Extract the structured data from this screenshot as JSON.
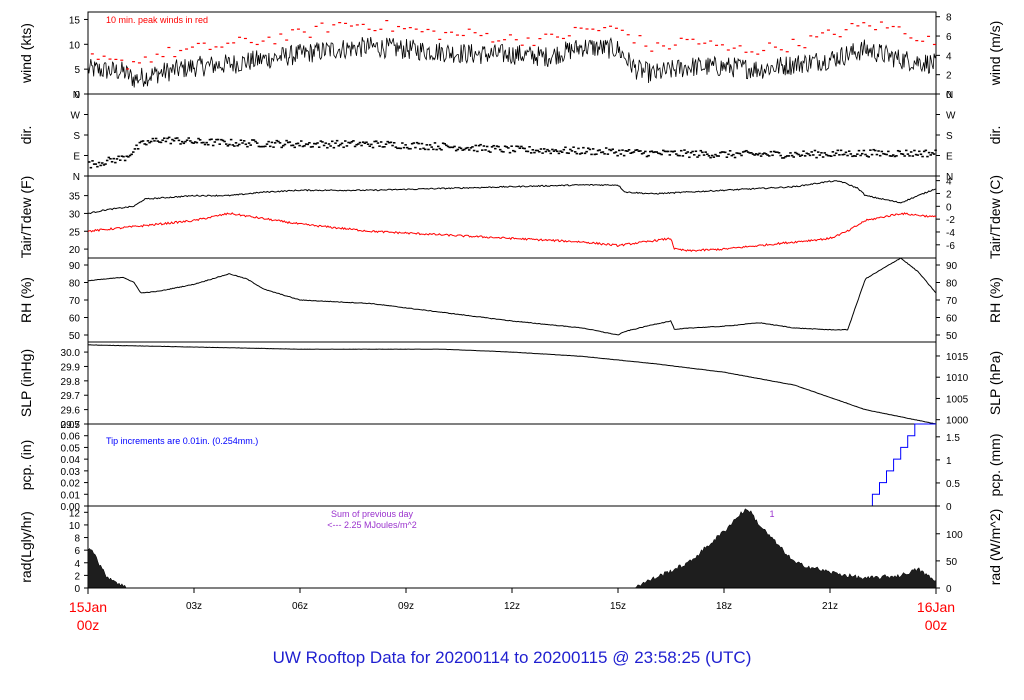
{
  "footer_title": "UW Rooftop Data for 20200114  to  20200115 @ 23:58:25  (UTC)",
  "colors": {
    "frame": "#000000",
    "red": "#ff0000",
    "blue": "#0000ff",
    "purple": "#9a32cd",
    "title": "#1f1fd0",
    "fill": "#1e1e1e"
  },
  "chart_data": [
    {
      "id": "wind",
      "type": "line",
      "ylabel_left": "wind (kts)",
      "ylabel_right": "wind (m/s)",
      "ylim": [
        0,
        16.5
      ],
      "yticks_left": [
        0,
        5,
        10,
        15
      ],
      "yticks_right": [
        0,
        2,
        4,
        6,
        8
      ],
      "right_scale": 0.5144,
      "annotation": "10 min. peak winds in red",
      "series": [
        {
          "style": "black line (average wind speed)",
          "x_hours": [
            0,
            1,
            1.3,
            2,
            3,
            4,
            5,
            6,
            7,
            8,
            9,
            10,
            11,
            12,
            13,
            14,
            15,
            15.5,
            16,
            17,
            18,
            19,
            20,
            21,
            22,
            23,
            24
          ],
          "values": [
            5,
            4.5,
            3,
            4.2,
            5.5,
            6,
            7,
            8,
            9,
            9.5,
            9,
            8.5,
            8,
            8,
            7.5,
            9.5,
            9,
            5,
            4,
            5.5,
            5.5,
            5,
            6,
            7,
            9,
            7,
            6
          ]
        },
        {
          "style": "red dashes (10-min peak)",
          "x_hours": [
            0,
            1,
            2,
            3,
            4,
            5,
            6,
            7,
            8,
            9,
            10,
            11,
            12,
            13,
            14,
            15,
            16,
            17,
            18,
            19,
            20,
            21,
            22,
            23,
            24
          ],
          "values": [
            7,
            6,
            8,
            9,
            10,
            11,
            12,
            14,
            14,
            13,
            12,
            12,
            11,
            11,
            13,
            13,
            9,
            11,
            9,
            9,
            10,
            12,
            14,
            13,
            10
          ]
        }
      ]
    },
    {
      "id": "dir",
      "type": "scatter",
      "ylabel_left": "dir.",
      "ylabel_right": "dir.",
      "yticks_left": [
        "N",
        "E",
        "S",
        "W",
        "N"
      ],
      "yticks_right": [
        "N",
        "E",
        "S",
        "W",
        "N"
      ],
      "ylim": [
        0,
        360
      ],
      "series": [
        {
          "style": "black dashes",
          "x_hours": [
            0,
            1,
            1.5,
            2,
            3,
            4,
            6,
            8,
            10,
            12,
            14,
            16,
            18,
            20,
            22,
            24
          ],
          "values": [
            50,
            80,
            140,
            160,
            150,
            145,
            140,
            140,
            130,
            115,
            110,
            100,
            95,
            95,
            100,
            100
          ]
        }
      ]
    },
    {
      "id": "temp",
      "type": "line",
      "ylabel_left": "Tair/Tdew (F)",
      "ylabel_right": "Tair/Tdew (C)",
      "ylim": [
        17.5,
        40.5
      ],
      "yticks_left": [
        20,
        25,
        30,
        35
      ],
      "yticks_right": [
        -6,
        -4,
        -2,
        0,
        2,
        4
      ],
      "series": [
        {
          "style": "black (Tair)",
          "x_hours": [
            0,
            0.5,
            1.3,
            1.6,
            3,
            4,
            5,
            6,
            8,
            10,
            12,
            14,
            15,
            15.2,
            16,
            17,
            18,
            19,
            20,
            21,
            21.3,
            21.8,
            22,
            23,
            24
          ],
          "values": [
            30,
            31,
            32,
            34,
            35,
            35,
            36,
            36.5,
            36.5,
            37,
            37.5,
            38,
            38,
            36,
            35.5,
            36,
            36.5,
            37,
            37.5,
            39,
            39,
            37,
            35,
            33,
            37
          ]
        },
        {
          "style": "red (Tdew)",
          "x_hours": [
            0,
            1,
            2,
            3,
            4,
            6,
            8,
            10,
            12,
            14,
            15,
            16.5,
            16.6,
            17,
            18,
            19,
            20,
            21,
            21.5,
            22,
            23,
            24
          ],
          "values": [
            25,
            26,
            27,
            28,
            30,
            27,
            25,
            24,
            23,
            22,
            21,
            23,
            20,
            19.5,
            20,
            21,
            22,
            23,
            25,
            28,
            30,
            29
          ]
        }
      ]
    },
    {
      "id": "rh",
      "type": "line",
      "ylabel_left": "RH (%)",
      "ylabel_right": "RH (%)",
      "ylim": [
        46,
        94
      ],
      "yticks_left": [
        50,
        60,
        70,
        80,
        90
      ],
      "yticks_right": [
        50,
        60,
        70,
        80,
        90
      ],
      "series": [
        {
          "style": "black",
          "x_hours": [
            0,
            0.5,
            1,
            1.3,
            1.5,
            2,
            3,
            4,
            4.5,
            5,
            6,
            8,
            10,
            12,
            14,
            15,
            15.2,
            16,
            16.5,
            16.6,
            17,
            18,
            19,
            20,
            21,
            21.5,
            22,
            23,
            23.5,
            24
          ],
          "values": [
            81,
            82,
            83,
            80,
            74,
            75,
            79,
            85,
            82,
            76,
            70,
            68,
            63,
            58,
            54,
            50,
            52,
            56,
            58,
            53,
            54,
            55,
            57,
            54,
            53,
            53,
            82,
            94,
            86,
            74
          ]
        }
      ]
    },
    {
      "id": "slp",
      "type": "line",
      "ylabel_left": "SLP (inHg)",
      "ylabel_right": "SLP (hPa)",
      "ylim": [
        29.5,
        30.07
      ],
      "yticks_left": [
        29.5,
        29.6,
        29.7,
        29.8,
        29.9,
        30.0
      ],
      "yticks_right": [
        1000,
        1005,
        1010,
        1015
      ],
      "series": [
        {
          "style": "black",
          "x_hours": [
            0,
            2,
            4,
            6,
            8,
            10,
            12,
            14,
            16,
            18,
            20,
            22,
            24
          ],
          "values": [
            30.05,
            30.04,
            30.03,
            30.02,
            30.02,
            30.02,
            30.0,
            29.97,
            29.92,
            29.86,
            29.77,
            29.6,
            29.5
          ]
        }
      ]
    },
    {
      "id": "pcp",
      "type": "line",
      "ylabel_left": "pcp. (in)",
      "ylabel_right": "pcp. (mm)",
      "ylim": [
        0,
        0.07
      ],
      "yticks_left": [
        0.0,
        0.01,
        0.02,
        0.03,
        0.04,
        0.05,
        0.06,
        0.07
      ],
      "yticks_right": [
        0,
        0.5,
        1,
        1.5
      ],
      "annotation": "Tip increments are 0.01in. (0.254mm.)",
      "series": [
        {
          "style": "blue step",
          "x_hours": [
            0,
            22.2,
            22.2,
            22.4,
            22.6,
            22.8,
            23.0,
            23.2,
            23.4,
            24
          ],
          "values": [
            0,
            0,
            0.01,
            0.02,
            0.03,
            0.04,
            0.05,
            0.06,
            0.07,
            0.07
          ]
        }
      ]
    },
    {
      "id": "rad",
      "type": "area",
      "ylabel_left": "rad(Lgly/hr)",
      "ylabel_right": "rad (W/m^2)",
      "ylim": [
        0,
        13
      ],
      "yticks_left": [
        0,
        2,
        4,
        6,
        8,
        10,
        12
      ],
      "yticks_right": [
        0,
        50,
        100
      ],
      "annotation_lines": [
        "Sum of previous day",
        "<--- 2.25 MJoules/m^2"
      ],
      "marker": "1",
      "series": [
        {
          "style": "dark filled",
          "x_hours": [
            0,
            0.1,
            0.3,
            0.5,
            1,
            1.1,
            15.4,
            16,
            17,
            18,
            18.5,
            18.7,
            19,
            20,
            21,
            22,
            23,
            23.5,
            24
          ],
          "values": [
            6,
            6.5,
            4,
            2,
            0.3,
            0,
            0,
            1.5,
            4,
            9,
            12,
            12.5,
            10,
            4,
            2.5,
            1.5,
            2,
            3,
            1
          ]
        }
      ]
    }
  ],
  "x_axis": {
    "start_label_top": "15Jan",
    "start_label_bottom": "00z",
    "end_label_top": "16Jan",
    "end_label_bottom": "00z",
    "tick_labels": [
      "03z",
      "06z",
      "09z",
      "12z",
      "15z",
      "18z",
      "21z"
    ],
    "tick_hours": [
      3,
      6,
      9,
      12,
      15,
      18,
      21
    ]
  }
}
